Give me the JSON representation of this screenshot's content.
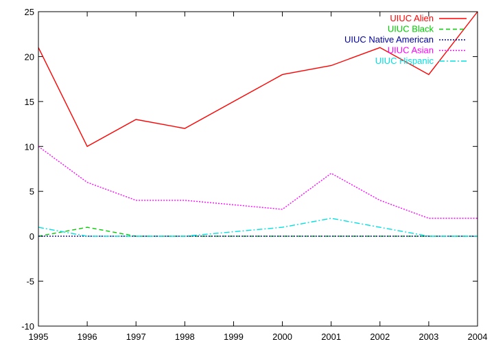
{
  "chart_data": {
    "type": "line",
    "title": "",
    "xlabel": "",
    "ylabel": "",
    "x": [
      1995,
      1996,
      1997,
      1998,
      1999,
      2000,
      2001,
      2002,
      2003,
      2004
    ],
    "xlim": [
      1995,
      2004
    ],
    "ylim": [
      -10,
      25
    ],
    "x_ticks": [
      "1995",
      "1996",
      "1997",
      "1998",
      "1999",
      "2000",
      "2001",
      "2002",
      "2003",
      "2004"
    ],
    "y_ticks": [
      "-10",
      "-5",
      "0",
      "5",
      "10",
      "15",
      "20",
      "25"
    ],
    "grid": false,
    "legend_position": "top-right",
    "series": [
      {
        "name": "UIUC Alien",
        "color": "#ff0000",
        "dash": "solid",
        "values": [
          21,
          10,
          13,
          12,
          15,
          18,
          19,
          21,
          18,
          25
        ]
      },
      {
        "name": "UIUC Black",
        "color": "#00cc00",
        "dash": "dashed",
        "values": [
          0,
          1,
          0,
          0,
          0,
          0,
          0,
          0,
          0,
          0
        ]
      },
      {
        "name": "UIUC Native American",
        "color": "#0000a0",
        "dash": "dotted",
        "values": [
          0,
          0,
          0,
          0,
          0,
          0,
          0,
          0,
          0,
          0
        ]
      },
      {
        "name": "UIUC Asian",
        "color": "#ff00ff",
        "dash": "dotted",
        "values": [
          10,
          6,
          4,
          4,
          3.5,
          3,
          7,
          4,
          2,
          2
        ]
      },
      {
        "name": "UIUC Hispanic",
        "color": "#00e0e0",
        "dash": "dashdot",
        "values": [
          1,
          0,
          0,
          0,
          0.5,
          1,
          2,
          1,
          0,
          0
        ]
      }
    ]
  }
}
